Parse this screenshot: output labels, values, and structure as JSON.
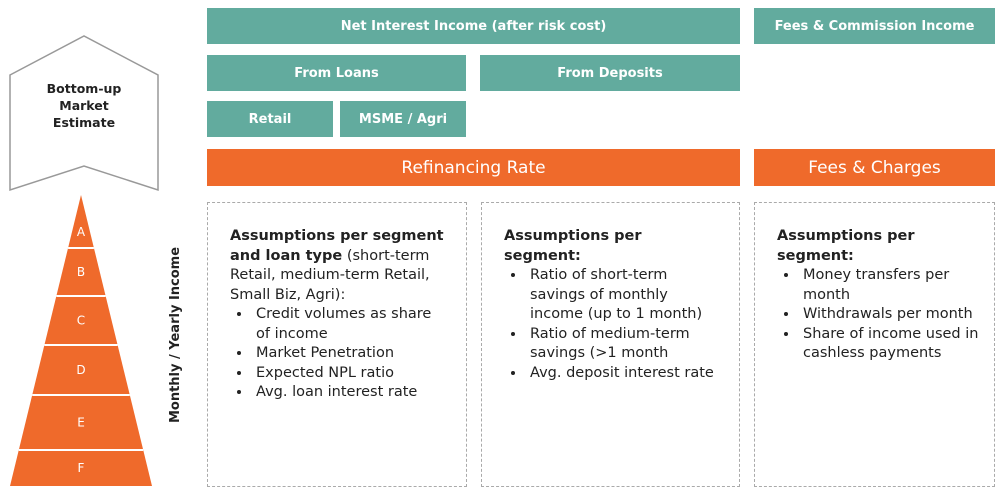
{
  "house": {
    "label": "Bottom-up Market Estimate"
  },
  "pyramid": {
    "axis_label": "Monthly / Yearly Income",
    "levels": [
      "A",
      "B",
      "C",
      "D",
      "E",
      "F"
    ]
  },
  "boxes": {
    "net_interest": "Net Interest Income (after risk cost)",
    "fees_commission": "Fees & Commission Income",
    "from_loans": "From Loans",
    "from_deposits": "From Deposits",
    "retail": "Retail",
    "msme_agri": "MSME / Agri",
    "refinancing": "Refinancing Rate",
    "fees_charges": "Fees & Charges"
  },
  "cards": [
    {
      "heading": "Assumptions per segment and loan type",
      "subtext": " (short-term Retail, medium-term Retail, Small Biz, Agri):",
      "bullets": [
        "Credit volumes as share of income",
        "Market Penetration",
        "Expected NPL ratio",
        "Avg. loan interest rate"
      ]
    },
    {
      "heading": "Assumptions per segment:",
      "bullets": [
        "Ratio of short-term savings of monthly income (up to 1 month)",
        "Ratio of medium-term savings (>1 month",
        "Avg. deposit interest rate"
      ]
    },
    {
      "heading": "Assumptions per segment:",
      "bullets": [
        "Money transfers per month",
        "Withdrawals per month",
        "Share of income used in cashless payments"
      ]
    }
  ]
}
